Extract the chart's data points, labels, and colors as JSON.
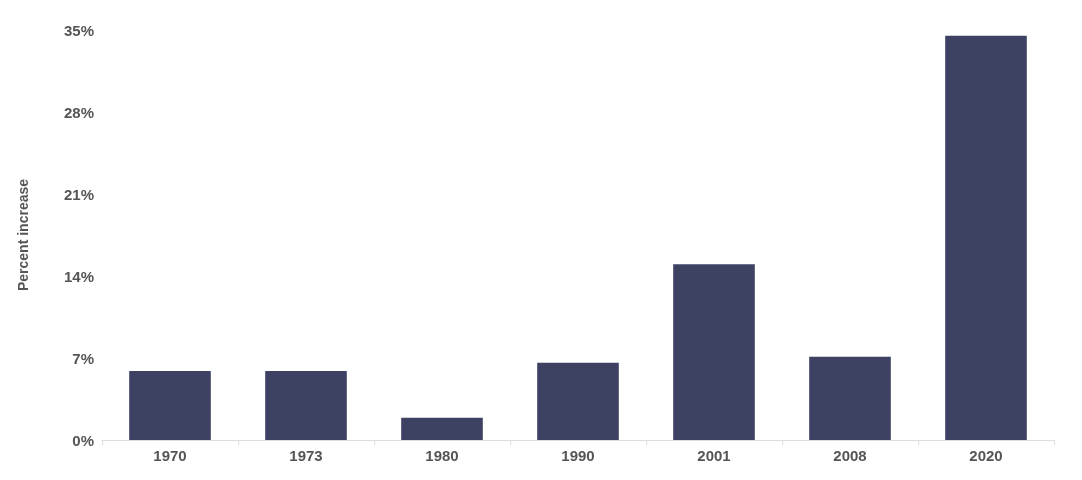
{
  "chart_data": {
    "type": "bar",
    "ylabel": "Percent increase",
    "categories": [
      "1970",
      "1973",
      "1980",
      "1990",
      "2001",
      "2008",
      "2020"
    ],
    "values": [
      5.9,
      5.9,
      1.9,
      6.6,
      15.0,
      7.1,
      34.5
    ],
    "color": "#3d4263",
    "ylim": [
      0,
      35
    ],
    "yticks": [
      {
        "value": 0,
        "label": "0%"
      },
      {
        "value": 7,
        "label": "7%"
      },
      {
        "value": 14,
        "label": "14%"
      },
      {
        "value": 21,
        "label": "21%"
      },
      {
        "value": 28,
        "label": "28%"
      },
      {
        "value": 35,
        "label": "35%"
      }
    ],
    "grid": false
  }
}
